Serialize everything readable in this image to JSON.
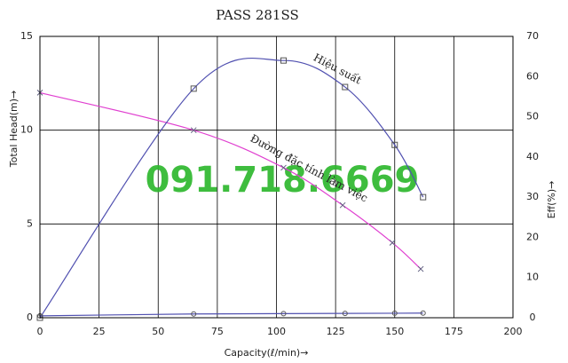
{
  "chart_data": {
    "type": "line",
    "title": "PASS 281SS",
    "xlabel": "Capacity(ℓ/min)→",
    "ylabel": "Total Head(m)→",
    "y2label": "Eff(%)→",
    "watermark": "091.718.6669",
    "xlim": [
      0,
      200
    ],
    "xticks": [
      0,
      25,
      50,
      75,
      100,
      125,
      150,
      175,
      200
    ],
    "ylim": [
      0,
      15
    ],
    "yticks": [
      0,
      5,
      10,
      15
    ],
    "y2lim": [
      0,
      70
    ],
    "y2ticks": [
      0,
      10,
      20,
      30,
      40,
      50,
      60,
      70
    ],
    "grid": true,
    "series": [
      {
        "name": "Đường đặc tính làm việc",
        "color": "#e040d0",
        "marker": "x",
        "axis": "y",
        "x": [
          0,
          65,
          103,
          128,
          149,
          161
        ],
        "values": [
          12,
          10,
          8,
          6,
          4,
          2.6
        ]
      },
      {
        "name": "Hiệu suất",
        "color": "#5050b0",
        "marker": "square",
        "axis": "y2",
        "x": [
          0,
          65,
          103,
          129,
          150,
          162
        ],
        "values": [
          0,
          57,
          64,
          57.4,
          43,
          30
        ]
      },
      {
        "color": "#5050b0",
        "marker": "circle",
        "axis": "y",
        "x": [
          0,
          65,
          103,
          129,
          150,
          162
        ],
        "values": [
          0.1,
          0.2,
          0.22,
          0.23,
          0.24,
          0.25
        ]
      }
    ]
  }
}
